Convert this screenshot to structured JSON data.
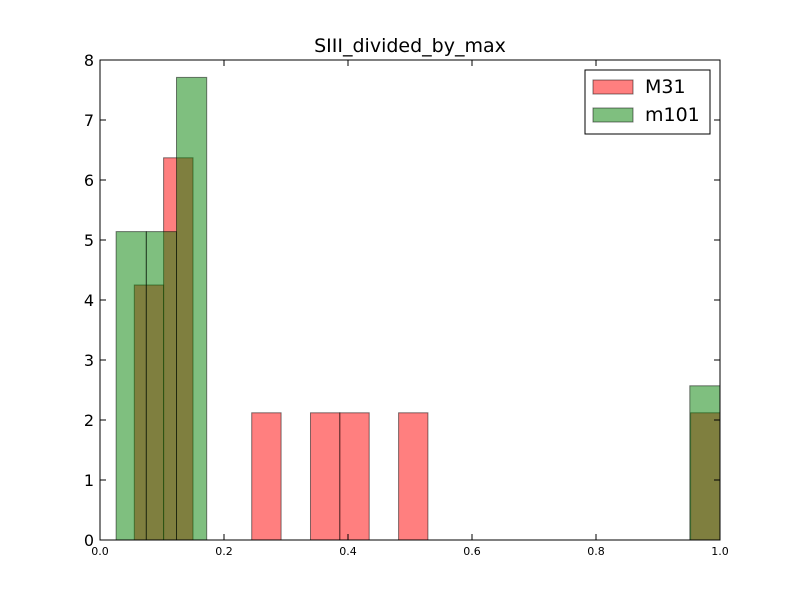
{
  "chart_data": {
    "type": "histogram",
    "title": "SIII_divided_by_max",
    "xlabel": "",
    "ylabel": "",
    "xlim": [
      0.0,
      1.0
    ],
    "ylim": [
      0,
      8
    ],
    "x_ticks": [
      "0.0",
      "0.2",
      "0.4",
      "0.6",
      "0.8",
      "1.0"
    ],
    "y_ticks": [
      "0",
      "1",
      "2",
      "3",
      "4",
      "5",
      "6",
      "7",
      "8"
    ],
    "grid": false,
    "legend_position": "top-right",
    "series": [
      {
        "name": "M31",
        "color": "#ff0000",
        "alpha": 0.5,
        "bins": [
          {
            "x0": 0.0553,
            "x1": 0.1026,
            "value": 4.25
          },
          {
            "x0": 0.1026,
            "x1": 0.15,
            "value": 6.37
          },
          {
            "x0": 0.2447,
            "x1": 0.2921,
            "value": 2.12
          },
          {
            "x0": 0.3395,
            "x1": 0.3868,
            "value": 2.12
          },
          {
            "x0": 0.3868,
            "x1": 0.4342,
            "value": 2.12
          },
          {
            "x0": 0.4816,
            "x1": 0.5289,
            "value": 2.12
          },
          {
            "x0": 0.9526,
            "x1": 1.0,
            "value": 2.12
          }
        ]
      },
      {
        "name": "m101",
        "color": "#008000",
        "alpha": 0.5,
        "bins": [
          {
            "x0": 0.026,
            "x1": 0.0747,
            "value": 5.14
          },
          {
            "x0": 0.0747,
            "x1": 0.1234,
            "value": 5.14
          },
          {
            "x0": 0.1234,
            "x1": 0.1721,
            "value": 7.71
          },
          {
            "x0": 0.9513,
            "x1": 1.0,
            "value": 2.57
          }
        ]
      }
    ]
  }
}
